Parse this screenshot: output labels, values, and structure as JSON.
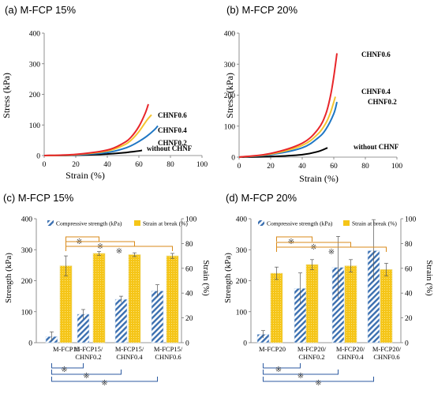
{
  "chart_data": [
    {
      "id": "a",
      "type": "line",
      "title": "(a) M-FCP 15%",
      "xlabel": "Strain (%)",
      "ylabel": "Stress (kPa)",
      "xlim": [
        0,
        100
      ],
      "ylim": [
        0,
        400
      ],
      "xticks": [
        "0",
        "20",
        "40",
        "60",
        "80",
        "100"
      ],
      "yticks": [
        "0",
        "100",
        "200",
        "300",
        "400"
      ],
      "series": [
        {
          "name": "CHNF0.6",
          "color": "#e8262a",
          "x": [
            0,
            20,
            40,
            50,
            55,
            60,
            64,
            66
          ],
          "y": [
            0,
            4,
            18,
            40,
            60,
            95,
            138,
            168
          ]
        },
        {
          "name": "CHNF0.4",
          "color": "#f4c430",
          "x": [
            0,
            20,
            40,
            50,
            55,
            60,
            65,
            68
          ],
          "y": [
            0,
            3,
            15,
            33,
            50,
            78,
            115,
            133
          ]
        },
        {
          "name": "CHNF0.2",
          "color": "#1f77c4",
          "x": [
            0,
            20,
            40,
            50,
            55,
            60,
            65,
            70,
            72
          ],
          "y": [
            0,
            2,
            10,
            22,
            32,
            46,
            63,
            85,
            97
          ]
        },
        {
          "name": "without CHNF",
          "color": "#000000",
          "x": [
            0,
            20,
            40,
            50,
            55,
            60,
            62
          ],
          "y": [
            0,
            1,
            5,
            9,
            12,
            15,
            17
          ]
        }
      ]
    },
    {
      "id": "b",
      "type": "line",
      "title": "(b) M-FCP 20%",
      "xlabel": "Strain (%)",
      "ylabel": "Stress (kPa)",
      "xlim": [
        0,
        100
      ],
      "ylim": [
        0,
        400
      ],
      "xticks": [
        "0",
        "20",
        "40",
        "60",
        "80",
        "100"
      ],
      "yticks": [
        "0",
        "100",
        "200",
        "300",
        "400"
      ],
      "series": [
        {
          "name": "CHNF0.6",
          "color": "#e8262a",
          "x": [
            0,
            20,
            40,
            50,
            55,
            58,
            60,
            62
          ],
          "y": [
            0,
            12,
            45,
            90,
            140,
            200,
            260,
            335
          ]
        },
        {
          "name": "CHNF0.4",
          "color": "#f4c430",
          "x": [
            0,
            20,
            40,
            50,
            55,
            58,
            61
          ],
          "y": [
            0,
            10,
            38,
            75,
            110,
            145,
            195
          ]
        },
        {
          "name": "CHNF0.2",
          "color": "#1f77c4",
          "x": [
            0,
            20,
            40,
            50,
            55,
            60,
            62
          ],
          "y": [
            0,
            8,
            30,
            62,
            90,
            140,
            178
          ]
        },
        {
          "name": "without CHNF",
          "color": "#000000",
          "x": [
            0,
            20,
            40,
            50,
            56
          ],
          "y": [
            0,
            2,
            8,
            18,
            30
          ]
        }
      ]
    },
    {
      "id": "c",
      "type": "bar",
      "title": "(c) M-FCP 15%",
      "ylabel": "Strength (kPa)",
      "y2label": "Strain (%)",
      "ylim": [
        0,
        400
      ],
      "y2lim": [
        0,
        100
      ],
      "yticks": [
        "0",
        "100",
        "200",
        "300",
        "400"
      ],
      "y2ticks": [
        "0",
        "20",
        "40",
        "60",
        "80",
        "100"
      ],
      "categories": [
        [
          "M-FCP15"
        ],
        [
          "M-FCP15/",
          "CHNF0.2"
        ],
        [
          "M-FCP15/",
          "CHNF0.4"
        ],
        [
          "M-FCP15/",
          "CHNF0.6"
        ]
      ],
      "series": [
        {
          "name": "Compressive strength (kPa)",
          "color": "#3a6fb0",
          "axis": "left",
          "values": [
            20,
            92,
            140,
            167
          ],
          "errors": [
            15,
            15,
            10,
            20
          ]
        },
        {
          "name": "Strain at break (%)",
          "color": "#f5c518",
          "axis": "right",
          "values": [
            62,
            72,
            71,
            70
          ],
          "errors": [
            8,
            1.5,
            1.5,
            2
          ]
        }
      ],
      "sig_mark": "※"
    },
    {
      "id": "d",
      "type": "bar",
      "title": "(d) M-FCP 20%",
      "ylabel": "Strength (kPa)",
      "y2label": "Strain (%)",
      "ylim": [
        0,
        400
      ],
      "y2lim": [
        0,
        100
      ],
      "yticks": [
        "0",
        "100",
        "200",
        "300",
        "400"
      ],
      "y2ticks": [
        "0",
        "20",
        "40",
        "60",
        "80",
        "100"
      ],
      "categories": [
        [
          "M-FCP20"
        ],
        [
          "M-FCP20/",
          "CHNF0.2"
        ],
        [
          "M-FCP20/",
          "CHNF0.4"
        ],
        [
          "M-FCP20/",
          "CHNF0.6"
        ]
      ],
      "series": [
        {
          "name": "Compressive strength (kPa)",
          "color": "#3a6fb0",
          "axis": "left",
          "values": [
            27,
            175,
            243,
            297
          ],
          "errors": [
            12,
            50,
            100,
            100
          ]
        },
        {
          "name": "Strain at break (%)",
          "color": "#f5c518",
          "axis": "right",
          "values": [
            56,
            63,
            62,
            59
          ],
          "errors": [
            5,
            4,
            5,
            5
          ]
        }
      ],
      "sig_mark": "※"
    }
  ]
}
